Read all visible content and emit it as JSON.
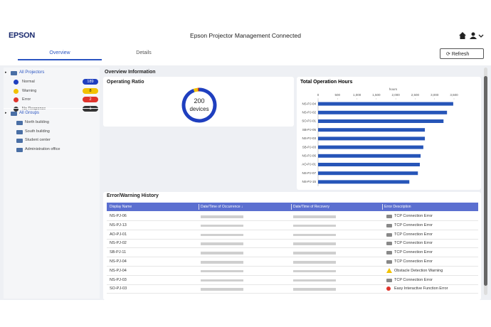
{
  "header": {
    "logo": "EPSON",
    "title": "Epson Projector Management Connected"
  },
  "tabs": [
    "Overview",
    "Details"
  ],
  "refresh": "Refresh",
  "sidebar": {
    "all_projectors": "All Projectors",
    "statuses": [
      {
        "name": "Normal",
        "count": 189,
        "color": "#1f3fbf"
      },
      {
        "name": "Warning",
        "count": 8,
        "color": "#f2c200"
      },
      {
        "name": "Error",
        "count": 2,
        "color": "#e0342c"
      },
      {
        "name": "No Response",
        "count": 1,
        "color": "#333333"
      }
    ],
    "all_groups": "All Groups",
    "groups": [
      "North building",
      "South building",
      "Student center",
      "Administration office"
    ]
  },
  "overview": {
    "title": "Overview Information",
    "operating_ratio": {
      "title": "Operating Ratio",
      "total": "200",
      "unit": "devices"
    }
  },
  "chart_data": {
    "type": "bar",
    "orientation": "horizontal",
    "title": "Total Operation Hours",
    "xlabel": "hours",
    "categories": [
      "NS-PJ-04",
      "NS-PJ-02",
      "SO-PJ-01",
      "SB-PJ-05",
      "NS-PJ-03",
      "SB-PJ-03",
      "NS-PJ-06",
      "AO-PJ-01",
      "NS-PJ-07",
      "NS-PJ-15"
    ],
    "values": [
      3480,
      3320,
      3230,
      2750,
      2750,
      2710,
      2640,
      2620,
      2570,
      2350
    ],
    "color": "#2655b8",
    "xlim": [
      0,
      3500
    ],
    "xticks": [
      0,
      500,
      {
        "value": 1000,
        "label": "1,000"
      },
      {
        "value": 1500,
        "label": "1,500"
      },
      {
        "value": 2000,
        "label": "2,000"
      },
      {
        "value": 2500,
        "label": "2,500"
      },
      {
        "value": 3000,
        "label": "3,000"
      },
      {
        "value": 3500,
        "label": "3,500"
      }
    ],
    "grid": false
  },
  "error_history": {
    "title": "Error/Warning History",
    "columns": [
      "Display Name",
      "Date/Time of Occurrence ↓",
      "Date/Time of Recovery",
      "Error Description"
    ],
    "rows": [
      {
        "name": "NS-PJ-06",
        "icon": "projector",
        "description": "TCP Connection Error"
      },
      {
        "name": "NS-PJ-13",
        "icon": "projector",
        "description": "TCP Connection Error"
      },
      {
        "name": "AO-PJ-01",
        "icon": "projector",
        "description": "TCP Connection Error"
      },
      {
        "name": "NS-PJ-02",
        "icon": "projector",
        "description": "TCP Connection Error"
      },
      {
        "name": "SB-PJ-11",
        "icon": "projector",
        "description": "TCP Connection Error"
      },
      {
        "name": "NS-PJ-04",
        "icon": "projector",
        "description": "TCP Connection Error"
      },
      {
        "name": "NS-PJ-04",
        "icon": "warning",
        "description": "Obstacle Detection Warning"
      },
      {
        "name": "NS-PJ-03",
        "icon": "projector",
        "description": "TCP Connection Error"
      },
      {
        "name": "SO-PJ-03",
        "icon": "error",
        "description": "Easy Interactive Function Error"
      }
    ]
  }
}
